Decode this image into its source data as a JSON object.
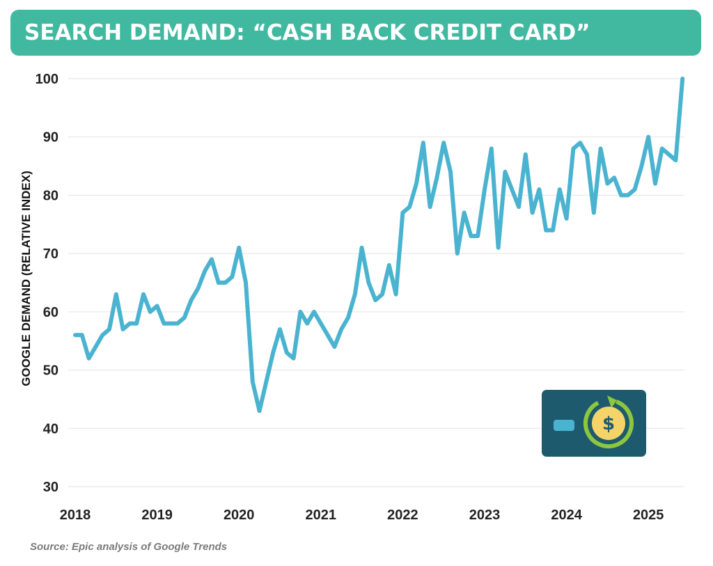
{
  "title": "SEARCH DEMAND: “CASH BACK CREDIT CARD”",
  "source": "Source: Epic analysis of Google Trends",
  "colors": {
    "banner": "#41b9a0",
    "line": "#4ab3d0",
    "grid": "#e3e3e3",
    "card": "#1e5a6e",
    "card_stripe": "#4ab3d0",
    "coin": "#f4d468",
    "arrow": "#8dc63f"
  },
  "icon": "credit-card-cash-back-icon",
  "coin_symbol": "$",
  "chart_data": {
    "type": "line",
    "ylabel": "GOOGLE DEMAND (RELATIVE INDEX)",
    "xlabel": "",
    "ylim": [
      30,
      100
    ],
    "yticks": [
      30,
      40,
      50,
      60,
      70,
      80,
      90,
      100
    ],
    "xticks": [
      "2018",
      "2019",
      "2020",
      "2021",
      "2022",
      "2023",
      "2024",
      "2025"
    ],
    "grid": "horizontal",
    "x_start": "2018-01",
    "x_end": "2025-05",
    "series": [
      {
        "values": [
          56,
          56,
          52,
          54,
          56,
          57,
          63,
          57,
          58,
          58,
          63,
          60,
          61,
          58,
          58,
          58,
          59,
          62,
          64,
          67,
          69,
          65,
          65,
          66,
          71,
          65,
          48,
          43,
          48,
          53,
          57,
          53,
          52,
          60,
          58,
          60,
          58,
          56,
          54,
          57,
          59,
          63,
          71,
          65,
          62,
          63,
          68,
          63,
          77,
          78,
          82,
          89,
          78,
          83,
          89,
          84,
          70,
          77,
          73,
          73,
          81,
          88,
          71,
          84,
          81,
          78,
          87,
          77,
          81,
          74,
          74,
          81,
          76,
          88,
          89,
          87,
          77,
          88,
          82,
          83,
          80,
          80,
          81,
          85,
          90,
          82,
          88,
          87,
          86,
          100
        ]
      }
    ]
  }
}
